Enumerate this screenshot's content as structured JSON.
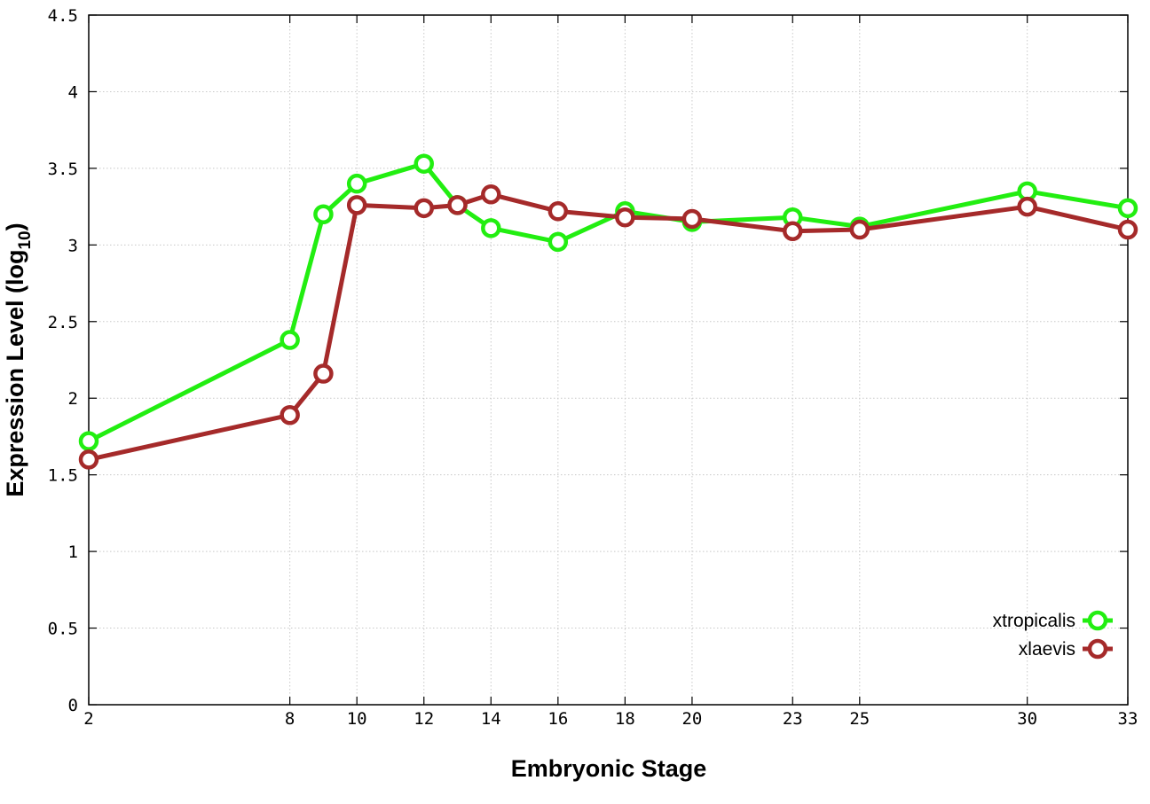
{
  "chart_data": {
    "type": "line",
    "title": "",
    "xlabel": "Embryonic Stage",
    "ylabel": "Expression Level (log",
    "ylabel_subscript": "10",
    "ylabel_close": ")",
    "xlim": [
      2,
      33
    ],
    "ylim": [
      0,
      4.5
    ],
    "x_ticks": [
      2,
      8,
      10,
      12,
      14,
      16,
      18,
      20,
      23,
      25,
      30,
      33
    ],
    "x_tick_labels": [
      "2",
      "8",
      "10",
      "12",
      "14",
      "16",
      "18",
      "20",
      "23",
      "25",
      "30",
      "33"
    ],
    "y_ticks": [
      0,
      0.5,
      1,
      1.5,
      2,
      2.5,
      3,
      3.5,
      4,
      4.5
    ],
    "y_tick_labels": [
      "0",
      "0.5",
      "1",
      "1.5",
      "2",
      "2.5",
      "3",
      "3.5",
      "4",
      "4.5"
    ],
    "grid": true,
    "legend_position": "bottom-right",
    "series": [
      {
        "name": "xtropicalis",
        "color": "#22ee11",
        "x": [
          2,
          8,
          9,
          10,
          12,
          13,
          14,
          16,
          18,
          20,
          23,
          25,
          30,
          33
        ],
        "y": [
          1.72,
          2.38,
          3.2,
          3.4,
          3.53,
          3.26,
          3.11,
          3.02,
          3.22,
          3.15,
          3.18,
          3.12,
          3.35,
          3.24
        ]
      },
      {
        "name": "xlaevis",
        "color": "#a52a2a",
        "x": [
          2,
          8,
          9,
          10,
          12,
          13,
          14,
          16,
          18,
          20,
          23,
          25,
          30,
          33
        ],
        "y": [
          1.6,
          1.89,
          2.16,
          3.26,
          3.24,
          3.26,
          3.33,
          3.22,
          3.18,
          3.17,
          3.09,
          3.1,
          3.25,
          3.1
        ]
      }
    ]
  }
}
